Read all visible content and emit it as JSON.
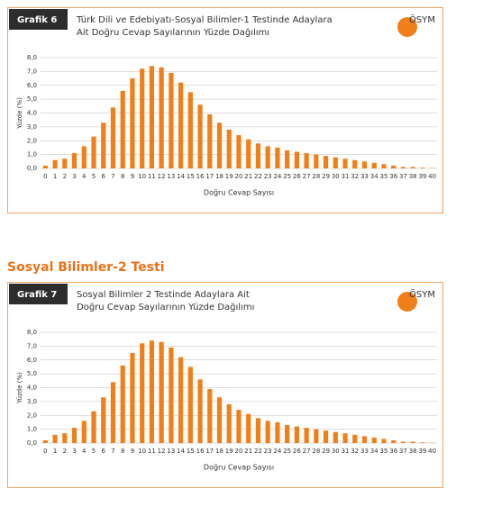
{
  "section_title": "Sosyal Bilimler-2 Testi",
  "chart_data": [
    {
      "type": "bar",
      "label": "Grafik 6",
      "logo": "ÖSYM",
      "title": [
        "Türk Dili ve Edebiyatı-Sosyal Bilimler-1 Testinde Adaylara",
        "Ait Doğru Cevap Sayılarının Yüzde Dağılımı"
      ],
      "x_label": "Doğru Cevap Sayısı",
      "y_label": "Yüzde (%)",
      "categories": [
        "0",
        "1",
        "2",
        "3",
        "4",
        "5",
        "6",
        "7",
        "8",
        "9",
        "10",
        "11",
        "12",
        "13",
        "14",
        "15",
        "16",
        "17",
        "18",
        "19",
        "20",
        "21",
        "22",
        "23",
        "24",
        "25",
        "26",
        "27",
        "28",
        "29",
        "30",
        "31",
        "32",
        "33",
        "34",
        "35",
        "36",
        "37",
        "38",
        "39",
        "40"
      ],
      "values": [
        0.2,
        0.6,
        0.7,
        1.1,
        1.6,
        2.3,
        3.3,
        4.4,
        5.6,
        6.5,
        7.2,
        7.4,
        7.3,
        6.9,
        6.2,
        5.5,
        4.6,
        3.9,
        3.3,
        2.8,
        2.4,
        2.1,
        1.8,
        1.6,
        1.5,
        1.3,
        1.2,
        1.1,
        1.0,
        0.9,
        0.8,
        0.7,
        0.6,
        0.5,
        0.4,
        0.3,
        0.2,
        0.1,
        0.1,
        0.05,
        0.02
      ],
      "color": "#f07f1a",
      "ylim": [
        0,
        8
      ],
      "yticks": [
        {
          "value": 0,
          "label": "0,0"
        },
        {
          "value": 1,
          "label": "1,0"
        },
        {
          "value": 2,
          "label": "2,0"
        },
        {
          "value": 3,
          "label": "3,0"
        },
        {
          "value": 4,
          "label": "4,0"
        },
        {
          "value": 5,
          "label": "5,0"
        },
        {
          "value": 6,
          "label": "6,0"
        },
        {
          "value": 7,
          "label": "7,0"
        },
        {
          "value": 8,
          "label": "8,0"
        }
      ],
      "grid": true
    },
    {
      "type": "bar",
      "label": "Grafik 7",
      "logo": "ÖSYM",
      "title": [
        "Sosyal Bilimler 2 Testinde Adaylara Ait",
        "Doğru Cevap Sayılarının Yüzde Dağılımı"
      ],
      "x_label": "Doğru Cevap Sayısı",
      "y_label": "Yüzde (%)",
      "categories": [
        "0",
        "1",
        "2",
        "3",
        "4",
        "5",
        "6",
        "7",
        "8",
        "9",
        "10",
        "11",
        "12",
        "13",
        "14",
        "15",
        "16",
        "17",
        "18",
        "19",
        "20",
        "21",
        "22",
        "23",
        "24",
        "25",
        "26",
        "27",
        "28",
        "29",
        "30",
        "31",
        "32",
        "33",
        "34",
        "35",
        "36",
        "37",
        "38",
        "39",
        "40"
      ],
      "values": [
        0.2,
        0.6,
        0.7,
        1.1,
        1.6,
        2.3,
        3.3,
        4.4,
        5.6,
        6.5,
        7.2,
        7.4,
        7.3,
        6.9,
        6.2,
        5.5,
        4.6,
        3.9,
        3.3,
        2.8,
        2.4,
        2.1,
        1.8,
        1.6,
        1.5,
        1.3,
        1.2,
        1.1,
        1.0,
        0.9,
        0.8,
        0.7,
        0.6,
        0.5,
        0.4,
        0.3,
        0.2,
        0.1,
        0.1,
        0.05,
        0.02
      ],
      "color": "#f07f1a",
      "ylim": [
        0,
        8
      ],
      "yticks": [
        {
          "value": 0,
          "label": "0,0"
        },
        {
          "value": 1,
          "label": "1,0"
        },
        {
          "value": 2,
          "label": "2,0"
        },
        {
          "value": 3,
          "label": "3,0"
        },
        {
          "value": 4,
          "label": "4,0"
        },
        {
          "value": 5,
          "label": "5,0"
        },
        {
          "value": 6,
          "label": "6,0"
        },
        {
          "value": 7,
          "label": "7,0"
        },
        {
          "value": 8,
          "label": "8,0"
        }
      ],
      "grid": true
    }
  ]
}
